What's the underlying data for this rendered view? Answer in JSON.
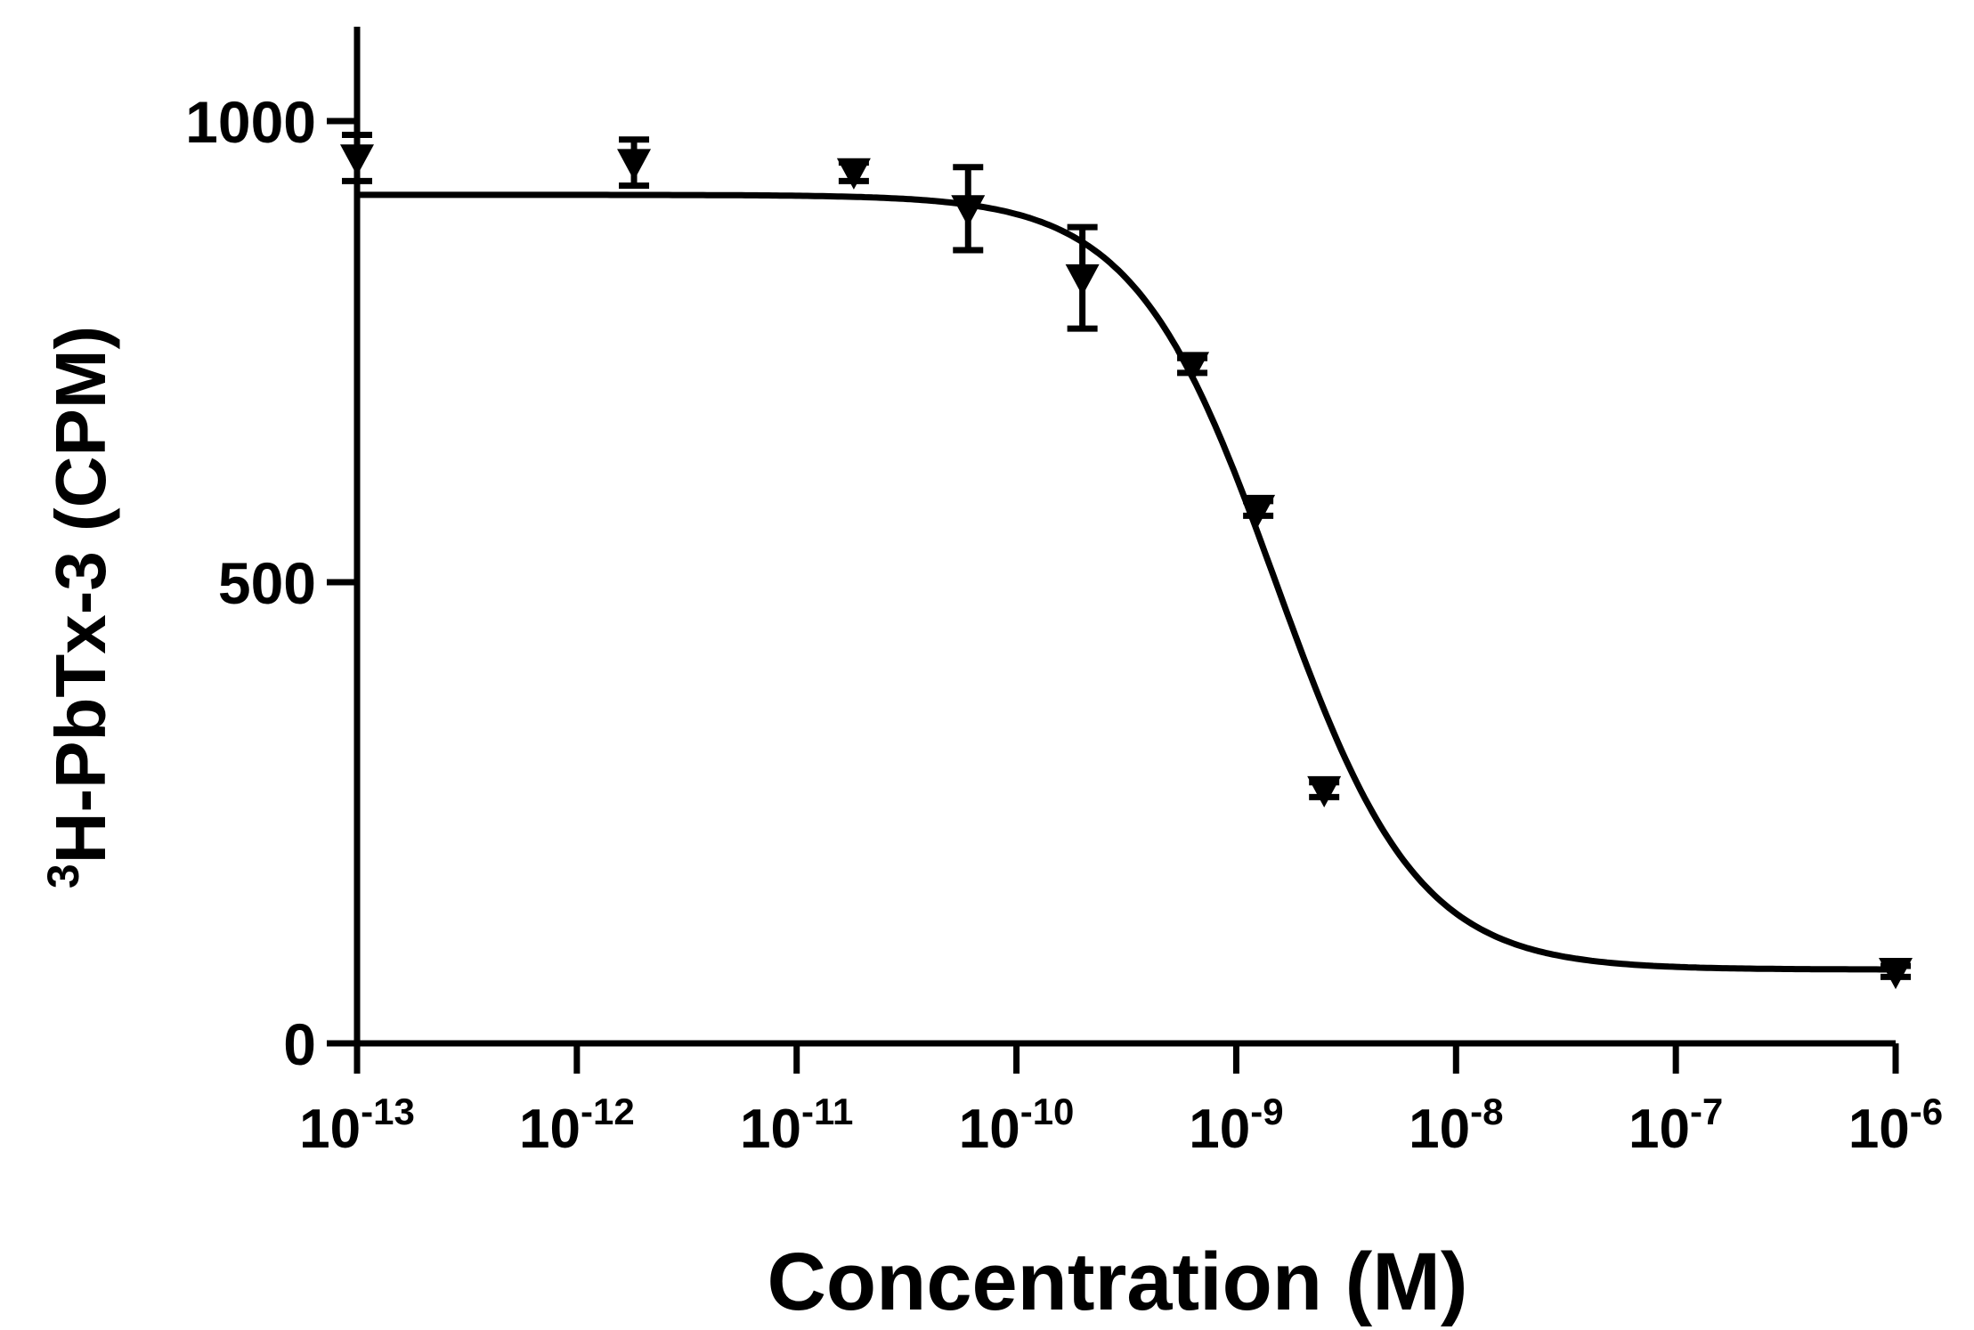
{
  "chart_data": {
    "type": "scatter",
    "title": "",
    "xlabel": "Concentration (M)",
    "ylabel": {
      "superscript": "3",
      "main": "H-PbTx-3 (CPM)"
    },
    "x_scale": "log10",
    "xlim_log10": [
      -13,
      -6
    ],
    "ylim": [
      0,
      1100
    ],
    "x_ticks": [
      {
        "log10": -13,
        "base": "10",
        "exp": "-13"
      },
      {
        "log10": -12,
        "base": "10",
        "exp": "-12"
      },
      {
        "log10": -11,
        "base": "10",
        "exp": "-11"
      },
      {
        "log10": -10,
        "base": "10",
        "exp": "-10"
      },
      {
        "log10": -9,
        "base": "10",
        "exp": "-9"
      },
      {
        "log10": -8,
        "base": "10",
        "exp": "-8"
      },
      {
        "log10": -7,
        "base": "10",
        "exp": "-7"
      },
      {
        "log10": -6,
        "base": "10",
        "exp": "-6"
      }
    ],
    "y_ticks": [
      {
        "value": 0,
        "label": "0"
      },
      {
        "value": 500,
        "label": "500"
      },
      {
        "value": 1000,
        "label": "1000"
      }
    ],
    "points": [
      {
        "log10_conc": -13.0,
        "value": 960,
        "err": 25
      },
      {
        "log10_conc": -11.74,
        "value": 955,
        "err": 25
      },
      {
        "log10_conc": -10.74,
        "value": 945,
        "err": 10
      },
      {
        "log10_conc": -10.22,
        "value": 905,
        "err": 45
      },
      {
        "log10_conc": -9.7,
        "value": 830,
        "err": 55
      },
      {
        "log10_conc": -9.2,
        "value": 735,
        "err": 8
      },
      {
        "log10_conc": -8.9,
        "value": 580,
        "err": 8
      },
      {
        "log10_conc": -8.6,
        "value": 275,
        "err": 8
      },
      {
        "log10_conc": -6.0,
        "value": 78,
        "err": 6
      }
    ],
    "fit_curve": {
      "type": "sigmoid",
      "top": 920,
      "bottom": 80,
      "log_ic50": -8.82,
      "hill": -1.35
    },
    "marker": "triangle-down",
    "line_color": "#000000"
  }
}
